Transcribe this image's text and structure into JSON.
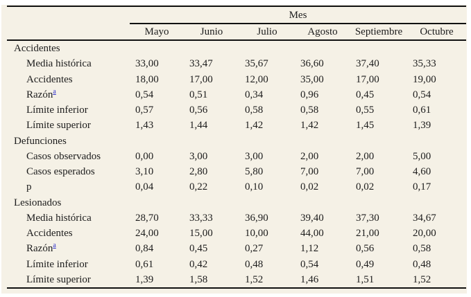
{
  "table": {
    "group_header": "Mes",
    "months": [
      "Mayo",
      "Junio",
      "Julio",
      "Agosto",
      "Septiembre",
      "Octubre"
    ],
    "sections": [
      {
        "label": "Accidentes",
        "rows": [
          {
            "label": "Media histórica",
            "values": [
              "33,00",
              "33,47",
              "35,67",
              "36,60",
              "37,40",
              "35,33"
            ]
          },
          {
            "label": "Accidentes",
            "values": [
              "18,00",
              "17,00",
              "12,00",
              "35,00",
              "17,00",
              "19,00"
            ]
          },
          {
            "label": "Razón",
            "footnote": "a",
            "values": [
              "0,54",
              "0,51",
              "0,34",
              "0,96",
              "0,45",
              "0,54"
            ]
          },
          {
            "label": "Límite inferior",
            "values": [
              "0,57",
              "0,56",
              "0,58",
              "0,58",
              "0,55",
              "0,61"
            ]
          },
          {
            "label": "Límite superior",
            "values": [
              "1,43",
              "1,44",
              "1,42",
              "1,42",
              "1,45",
              "1,39"
            ]
          }
        ]
      },
      {
        "label": "Defunciones",
        "rows": [
          {
            "label": "Casos observados",
            "values": [
              "0,00",
              "3,00",
              "3,00",
              "2,00",
              "2,00",
              "5,00"
            ]
          },
          {
            "label": "Casos esperados",
            "values": [
              "3,10",
              "2,80",
              "5,80",
              "7,00",
              "7,00",
              "4,60"
            ]
          },
          {
            "label": "p",
            "values": [
              "0,04",
              "0,22",
              "0,10",
              "0,02",
              "0,02",
              "0,17"
            ]
          }
        ]
      },
      {
        "label": "Lesionados",
        "rows": [
          {
            "label": "Media histórica",
            "values": [
              "28,70",
              "33,33",
              "36,90",
              "39,40",
              "37,30",
              "34,67"
            ]
          },
          {
            "label": "Accidentes",
            "values": [
              "24,00",
              "15,00",
              "10,00",
              "44,00",
              "21,00",
              "20,00"
            ]
          },
          {
            "label": "Razón",
            "footnote": "a",
            "values": [
              "0,84",
              "0,45",
              "0,27",
              "1,12",
              "0,56",
              "0,58"
            ]
          },
          {
            "label": "Límite inferior",
            "values": [
              "0,61",
              "0,42",
              "0,48",
              "0,54",
              "0,49",
              "0,48"
            ]
          },
          {
            "label": "Límite superior",
            "values": [
              "1,39",
              "1,58",
              "1,52",
              "1,46",
              "1,51",
              "1,52"
            ]
          }
        ]
      }
    ],
    "colors": {
      "background": "#f5f1e6",
      "rule": "#111111",
      "text": "#1c1c1c",
      "footnote_link": "#3333cc"
    }
  }
}
